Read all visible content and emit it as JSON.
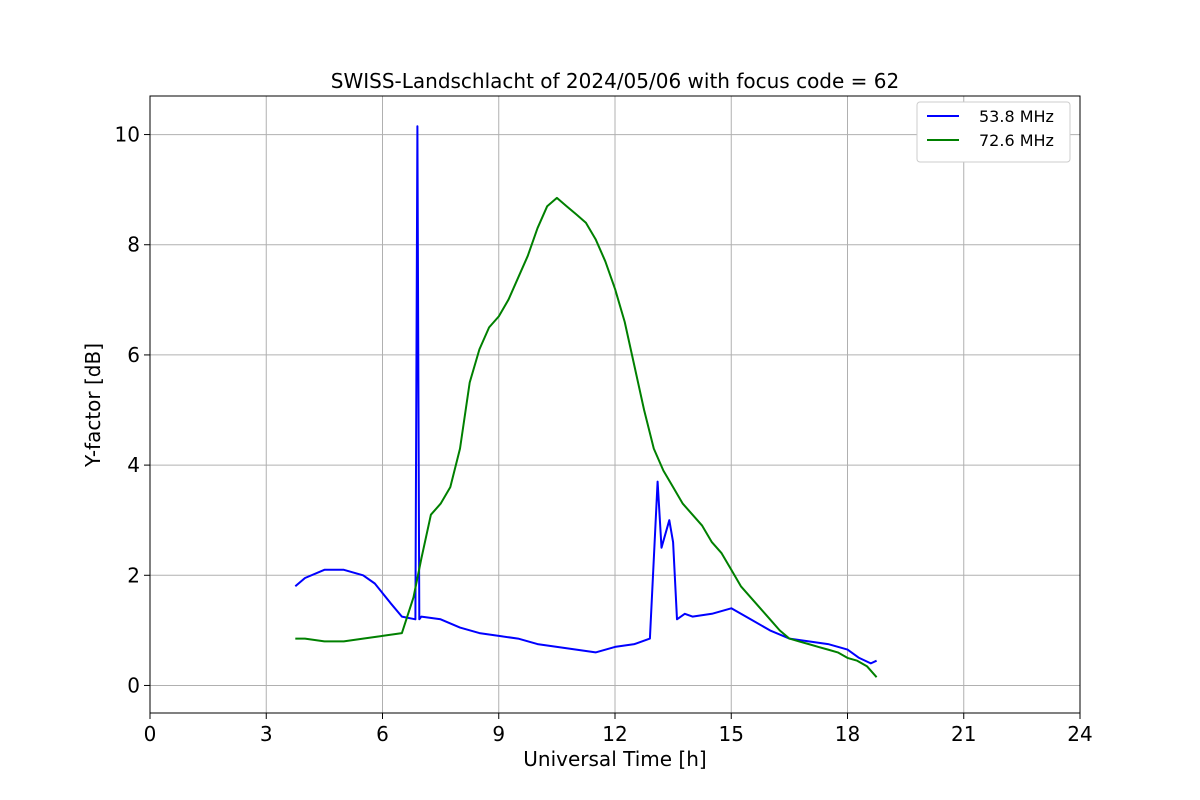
{
  "chart_data": {
    "type": "line",
    "title": "SWISS-Landschlacht of 2024/05/06 with focus code = 62",
    "xlabel": "Universal Time [h]",
    "ylabel": "Y-factor [dB]",
    "xlim": [
      0,
      24
    ],
    "ylim": [
      -0.5,
      10.7
    ],
    "xticks": [
      0,
      3,
      6,
      9,
      12,
      15,
      18,
      21,
      24
    ],
    "xtick_labels": [
      "0",
      "3",
      "6",
      "9",
      "12",
      "15",
      "18",
      "21",
      "24"
    ],
    "yticks": [
      0,
      2,
      4,
      6,
      8,
      10
    ],
    "ytick_labels": [
      "0",
      "2",
      "4",
      "6",
      "8",
      "10"
    ],
    "grid": true,
    "legend_position": "top-right",
    "series": [
      {
        "name": "53.8 MHz",
        "color": "#0000ff",
        "x": [
          3.75,
          4.0,
          4.5,
          5.0,
          5.5,
          5.8,
          6.2,
          6.5,
          6.85,
          6.9,
          6.95,
          7.0,
          7.5,
          8.0,
          8.5,
          9.0,
          9.5,
          10.0,
          10.5,
          11.0,
          11.5,
          12.0,
          12.5,
          12.9,
          13.1,
          13.2,
          13.4,
          13.5,
          13.6,
          13.8,
          14.0,
          14.5,
          15.0,
          15.5,
          16.0,
          16.5,
          17.0,
          17.5,
          18.0,
          18.3,
          18.6,
          18.75
        ],
        "y": [
          1.8,
          1.95,
          2.1,
          2.1,
          2.0,
          1.85,
          1.5,
          1.25,
          1.2,
          10.15,
          1.2,
          1.25,
          1.2,
          1.05,
          0.95,
          0.9,
          0.85,
          0.75,
          0.7,
          0.65,
          0.6,
          0.7,
          0.75,
          0.85,
          3.7,
          2.5,
          3.0,
          2.6,
          1.2,
          1.3,
          1.25,
          1.3,
          1.4,
          1.2,
          1.0,
          0.85,
          0.8,
          0.75,
          0.65,
          0.5,
          0.4,
          0.45
        ]
      },
      {
        "name": "72.6 MHz",
        "color": "#008000",
        "x": [
          3.75,
          4.0,
          4.5,
          5.0,
          5.5,
          6.0,
          6.5,
          6.8,
          7.0,
          7.25,
          7.5,
          7.75,
          8.0,
          8.25,
          8.5,
          8.75,
          9.0,
          9.25,
          9.5,
          9.75,
          10.0,
          10.25,
          10.5,
          10.75,
          11.0,
          11.25,
          11.5,
          11.75,
          12.0,
          12.25,
          12.5,
          12.75,
          13.0,
          13.25,
          13.5,
          13.75,
          14.0,
          14.25,
          14.5,
          14.75,
          15.0,
          15.25,
          15.5,
          15.75,
          16.0,
          16.25,
          16.5,
          16.75,
          17.0,
          17.25,
          17.5,
          17.75,
          18.0,
          18.25,
          18.5,
          18.75
        ],
        "y": [
          0.85,
          0.85,
          0.8,
          0.8,
          0.85,
          0.9,
          0.95,
          1.6,
          2.3,
          3.1,
          3.3,
          3.6,
          4.3,
          5.5,
          6.1,
          6.5,
          6.7,
          7.0,
          7.4,
          7.8,
          8.3,
          8.7,
          8.85,
          8.7,
          8.55,
          8.4,
          8.1,
          7.7,
          7.2,
          6.6,
          5.8,
          5.0,
          4.3,
          3.9,
          3.6,
          3.3,
          3.1,
          2.9,
          2.6,
          2.4,
          2.1,
          1.8,
          1.6,
          1.4,
          1.2,
          1.0,
          0.85,
          0.8,
          0.75,
          0.7,
          0.65,
          0.6,
          0.5,
          0.45,
          0.35,
          0.15
        ]
      }
    ]
  }
}
